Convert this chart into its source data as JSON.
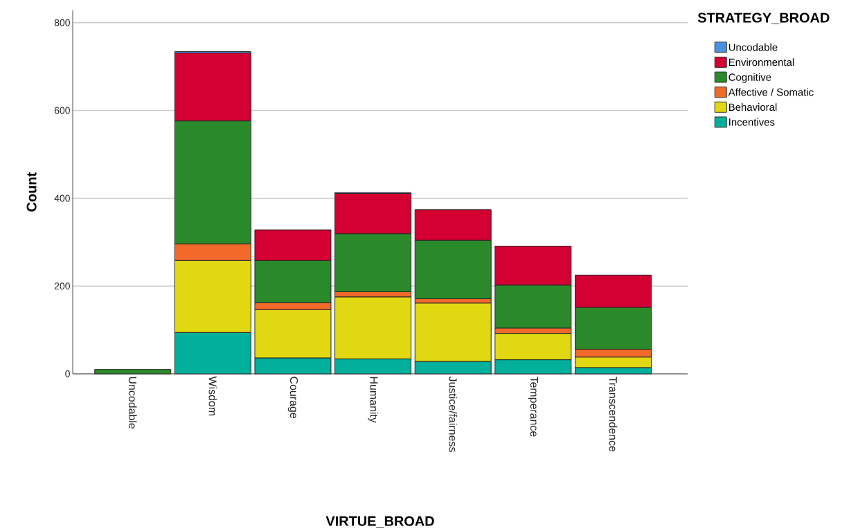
{
  "chart_data": {
    "type": "bar",
    "stacked": true,
    "xlabel": "VIRTUE_BROAD",
    "ylabel": "Count",
    "legend_title": "STRATEGY_BROAD",
    "categories": [
      "Uncodable",
      "Wisdom",
      "Courage",
      "Humanity",
      "Justice/fairness",
      "Temperance",
      "Transcendence"
    ],
    "series": [
      {
        "name": "Incentives",
        "color": "#00b09b",
        "values": [
          0,
          94,
          36,
          34,
          28,
          32,
          14
        ]
      },
      {
        "name": "Behavioral",
        "color": "#e2d812",
        "values": [
          0,
          164,
          110,
          141,
          133,
          60,
          24
        ]
      },
      {
        "name": "Affective / Somatic",
        "color": "#f26a2a",
        "values": [
          0,
          38,
          16,
          12,
          10,
          12,
          18
        ]
      },
      {
        "name": "Cognitive",
        "color": "#2a8a2a",
        "values": [
          10,
          280,
          96,
          132,
          133,
          98,
          95
        ]
      },
      {
        "name": "Environmental",
        "color": "#d50032",
        "values": [
          0,
          155,
          70,
          92,
          70,
          89,
          74
        ]
      },
      {
        "name": "Uncodable",
        "color": "#4a90e2",
        "values": [
          0,
          3,
          0,
          2,
          0,
          0,
          0
        ]
      }
    ],
    "ylim": [
      0,
      828
    ],
    "yticks": [
      0,
      200,
      400,
      600,
      800
    ],
    "grid": "y",
    "legend": "right"
  }
}
